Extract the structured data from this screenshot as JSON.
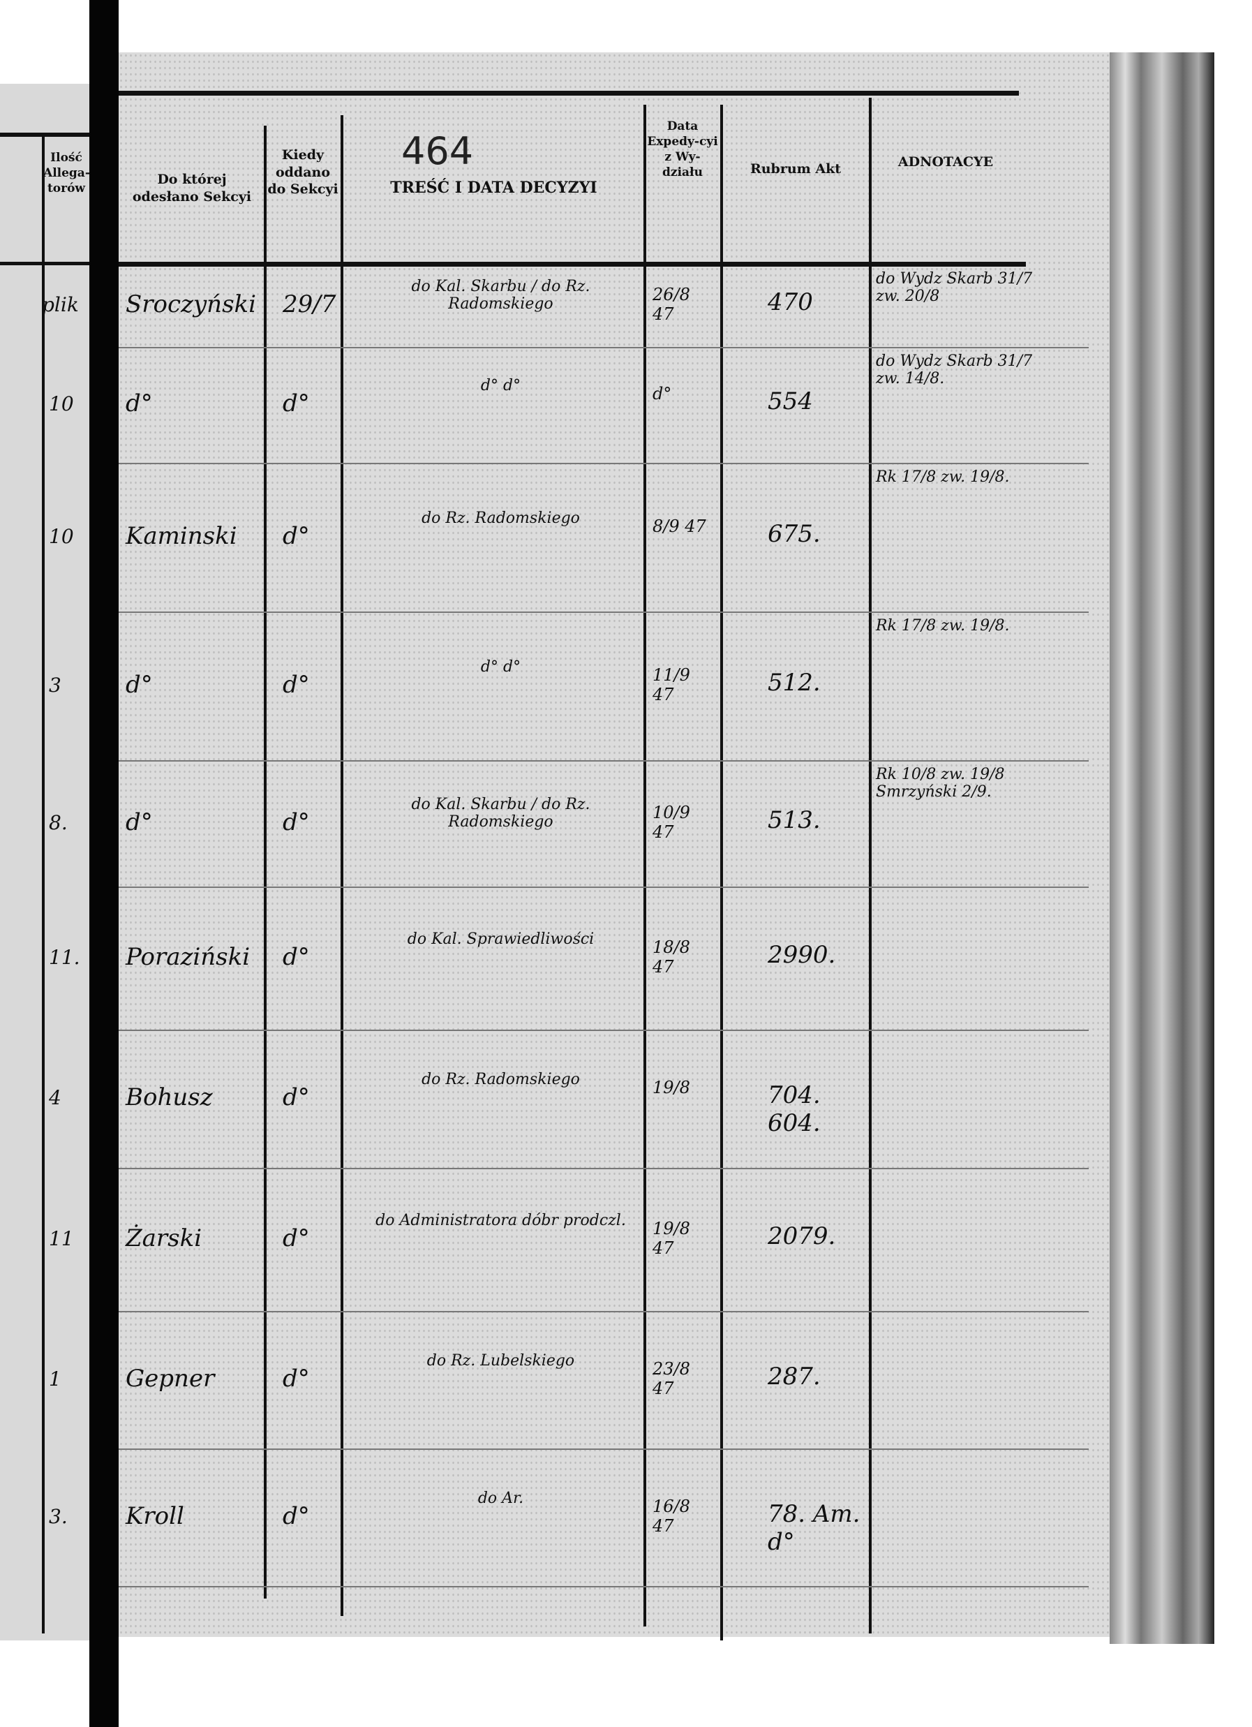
{
  "page_number": "464",
  "header": {
    "left_allegaty": "Ilość Allega-torów",
    "sekcja": "Do której odesłano Sekcyi",
    "kiedy": "Kiedy oddano do Sekcyi",
    "tresc": "TREŚĆ I DATA DECYZYI",
    "data_expedycyi": "Data Expedy-cyi z Wy-działu",
    "rubrum": "Rubrum Akt",
    "adnotacye": "ADNOTACYE"
  },
  "left_page_fragments": [
    "plik",
    "10",
    "10",
    "3",
    "8.",
    "11.",
    "4",
    "11",
    "1",
    "3."
  ],
  "rows": [
    {
      "sekcja": "Sroczyński",
      "kiedy": "29/7",
      "tresc": "do Kal. Skarbu / do Rz. Radomskiego",
      "data": "26/8 47",
      "rubrum": "470",
      "adnotacye": "do Wydz Skarb 31/7 zw. 20/8"
    },
    {
      "sekcja": "d°",
      "kiedy": "d°",
      "tresc": "d°   d°",
      "data": "d°",
      "rubrum": "554",
      "adnotacye": "do Wydz Skarb 31/7 zw. 14/8."
    },
    {
      "sekcja": "Kaminski",
      "kiedy": "d°",
      "tresc": "do Rz. Radomskiego",
      "data": "8/9 47",
      "rubrum": "675.",
      "adnotacye": "Rk 17/8 zw. 19/8."
    },
    {
      "sekcja": "d°",
      "kiedy": "d°",
      "tresc": "d°   d°",
      "data": "11/9 47",
      "rubrum": "512.",
      "adnotacye": "Rk 17/8 zw. 19/8."
    },
    {
      "sekcja": "d°",
      "kiedy": "d°",
      "tresc": "do Kal. Skarbu / do Rz. Radomskiego",
      "data": "10/9 47",
      "rubrum": "513.",
      "adnotacye": "Rk 10/8 zw. 19/8 Smrzyński 2/9."
    },
    {
      "sekcja": "Poraziński",
      "kiedy": "d°",
      "tresc": "do Kal. Sprawiedliwości",
      "data": "18/8 47",
      "rubrum": "2990.",
      "adnotacye": ""
    },
    {
      "sekcja": "Bohusz",
      "kiedy": "d°",
      "tresc": "do Rz. Radomskiego",
      "data": "19/8",
      "rubrum": "704. 604.",
      "adnotacye": ""
    },
    {
      "sekcja": "Żarski",
      "kiedy": "d°",
      "tresc": "do Administratora dóbr prodczl.",
      "data": "19/8 47",
      "rubrum": "2079.",
      "adnotacye": ""
    },
    {
      "sekcja": "Gepner",
      "kiedy": "d°",
      "tresc": "do Rz. Lubelskiego",
      "data": "23/8 47",
      "rubrum": "287.",
      "adnotacye": ""
    },
    {
      "sekcja": "Kroll",
      "kiedy": "d°",
      "tresc": "do Ar.",
      "data": "16/8 47",
      "rubrum": "78. Am. d°",
      "adnotacye": ""
    }
  ]
}
